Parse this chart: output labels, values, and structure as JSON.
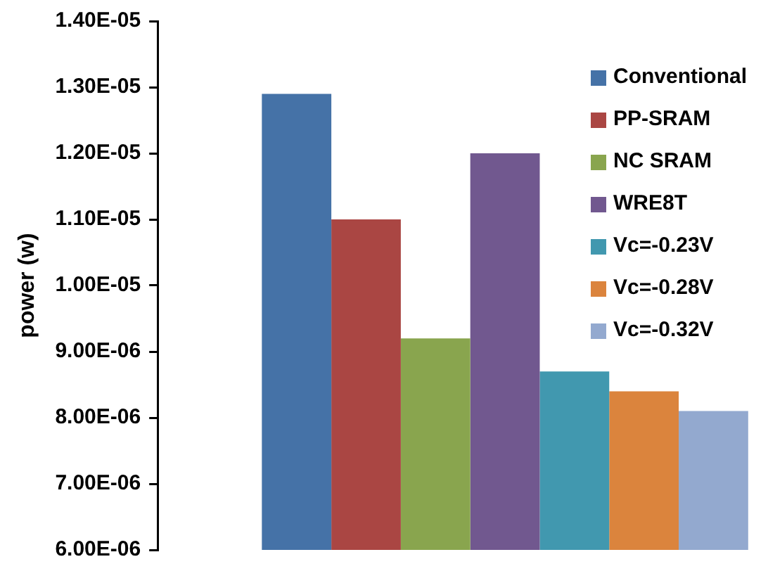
{
  "chart_data": {
    "type": "bar",
    "ylabel": "power (w)",
    "categories": [
      null
    ],
    "series": [
      {
        "name": "Conventional",
        "color": "#4572a7",
        "values": [
          1.29e-05
        ]
      },
      {
        "name": "PP-SRAM",
        "color": "#aa4643",
        "values": [
          1.1e-05
        ]
      },
      {
        "name": "NC SRAM",
        "color": "#89a54e",
        "values": [
          9.2e-06
        ]
      },
      {
        "name": "WRE8T",
        "color": "#71588f",
        "values": [
          1.2e-05
        ]
      },
      {
        "name": "Vc=-0.23V",
        "color": "#4198af",
        "values": [
          8.7e-06
        ]
      },
      {
        "name": "Vc=-0.28V",
        "color": "#db843d",
        "values": [
          8.4e-06
        ]
      },
      {
        "name": "Vc=-0.32V",
        "color": "#93a9cf",
        "values": [
          8.1e-06
        ]
      }
    ],
    "ylim": [
      6e-06,
      1.4e-05
    ],
    "yticks": [
      {
        "value": 6e-06,
        "label": "6.00E-06"
      },
      {
        "value": 7e-06,
        "label": "7.00E-06"
      },
      {
        "value": 8e-06,
        "label": "8.00E-06"
      },
      {
        "value": 9e-06,
        "label": "9.00E-06"
      },
      {
        "value": 1e-05,
        "label": "1.00E-05"
      },
      {
        "value": 1.1e-05,
        "label": "1.10E-05"
      },
      {
        "value": 1.2e-05,
        "label": "1.20E-05"
      },
      {
        "value": 1.3e-05,
        "label": "1.30E-05"
      },
      {
        "value": 1.4e-05,
        "label": "1.40E-05"
      }
    ],
    "grid": false,
    "legend": "top right"
  }
}
